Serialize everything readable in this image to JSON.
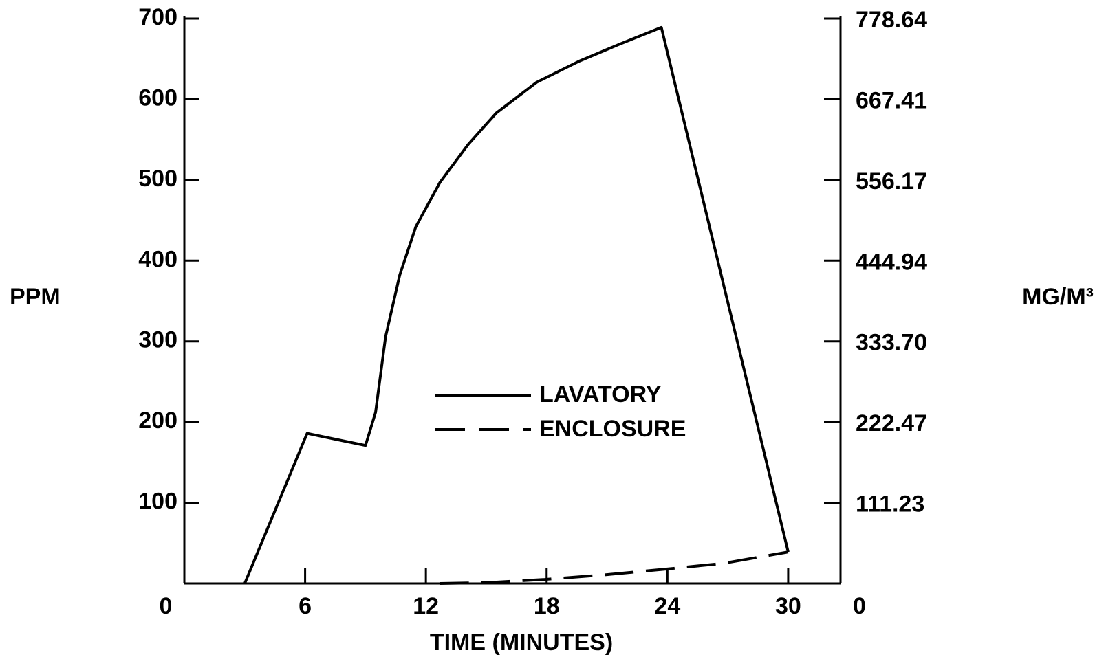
{
  "chart_data": {
    "type": "line",
    "x_label": "TIME (MINUTES)",
    "y_label": "PPM",
    "y2_label": "MG/M³",
    "xlim": [
      0,
      32.6
    ],
    "xticks": [
      0,
      6,
      12,
      18,
      24,
      30
    ],
    "ylim": [
      0,
      700
    ],
    "yticks": [
      0,
      100,
      200,
      300,
      400,
      500,
      600,
      700
    ],
    "y2lim": [
      0,
      778.64
    ],
    "y2ticks": [
      0,
      111.23,
      222.47,
      {
        "value": 333.7,
        "label": "333.70"
      },
      444.94,
      556.17,
      667.41,
      778.64
    ],
    "series": [
      {
        "name": "LAVATORY",
        "color": "#000000",
        "line_style": "solid",
        "x": [
          3.0,
          6.1,
          9.0,
          9.5,
          10.0,
          10.7,
          11.5,
          12.7,
          14.1,
          15.5,
          17.5,
          19.6,
          21.6,
          23.7,
          30.0
        ],
        "values": [
          0,
          186,
          171,
          212,
          306,
          382,
          442,
          497,
          544,
          583,
          621,
          647,
          668,
          689,
          39
        ]
      },
      {
        "name": "ENCLOSURE",
        "color": "#000000",
        "line_style": "dashed",
        "x": [
          12.7,
          15.0,
          17.9,
          21.0,
          24.0,
          26.8,
          30.0
        ],
        "values": [
          0,
          1,
          5,
          11,
          18,
          25,
          39
        ]
      }
    ]
  }
}
